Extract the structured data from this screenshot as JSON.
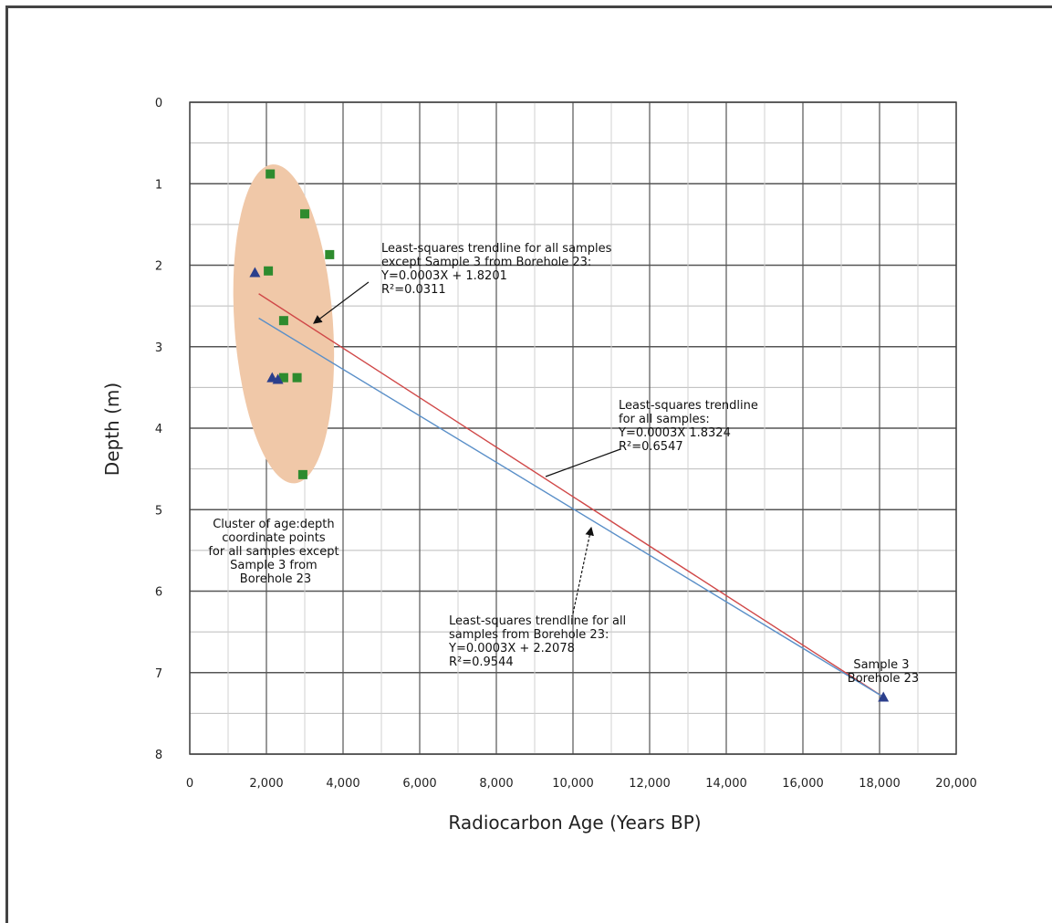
{
  "chart_data": {
    "type": "scatter",
    "xlabel": "Radiocarbon Age (Years BP)",
    "ylabel": "Depth (m)",
    "xlim": [
      0,
      20000
    ],
    "ylim": [
      0,
      8
    ],
    "y_inverted": true,
    "grid": true,
    "x_ticks": [
      "0",
      "2,000",
      "4,000",
      "6,000",
      "8,000",
      "10,000",
      "12,000",
      "14,000",
      "16,000",
      "18,000",
      "20,000"
    ],
    "y_ticks": [
      "0",
      "1",
      "2",
      "3",
      "4",
      "5",
      "6",
      "7",
      "8"
    ],
    "series": [
      {
        "marker": "square",
        "color": "#2e8b2e",
        "points": [
          {
            "x": 2100,
            "y": 0.88
          },
          {
            "x": 3000,
            "y": 1.37
          },
          {
            "x": 3650,
            "y": 1.87
          },
          {
            "x": 2050,
            "y": 2.07
          },
          {
            "x": 2450,
            "y": 2.68
          },
          {
            "x": 2450,
            "y": 3.38
          },
          {
            "x": 2800,
            "y": 3.38
          },
          {
            "x": 2950,
            "y": 4.57
          }
        ]
      },
      {
        "marker": "triangle",
        "color": "#2b3f8c",
        "points": [
          {
            "x": 1700,
            "y": 2.09
          },
          {
            "x": 2150,
            "y": 3.38
          },
          {
            "x": 2300,
            "y": 3.4
          },
          {
            "x": 18100,
            "y": 7.3
          }
        ]
      }
    ],
    "trendlines": [
      {
        "color": "#d04848",
        "from": [
          1800,
          2.35
        ],
        "to": [
          18100,
          7.3
        ]
      },
      {
        "color": "#5a8fc8",
        "from": [
          1800,
          2.65
        ],
        "to": [
          18100,
          7.3
        ]
      }
    ],
    "cluster_color": "#f0c8a8",
    "annotations": {
      "trend_except": [
        "Least-squares trendline for all samples",
        "except Sample 3 from Borehole 23:",
        "Y=0.0003X + 1.8201",
        "R²=0.0311"
      ],
      "trend_all": [
        "Least-squares trendline",
        "for all samples:",
        "Y=0.0003X    1.8324",
        "R²=0.6547"
      ],
      "trend_borehole": [
        "Least-squares trendline for all",
        "samples from Borehole 23:",
        "Y=0.0003X + 2.2078",
        "R²=0.9544"
      ],
      "cluster": [
        "Cluster of age:depth",
        "coordinate points",
        "for all samples except",
        "Sample 3 from",
        "Borehole 23"
      ],
      "sample3": [
        "Sample 3",
        "Borehole 23"
      ]
    }
  }
}
